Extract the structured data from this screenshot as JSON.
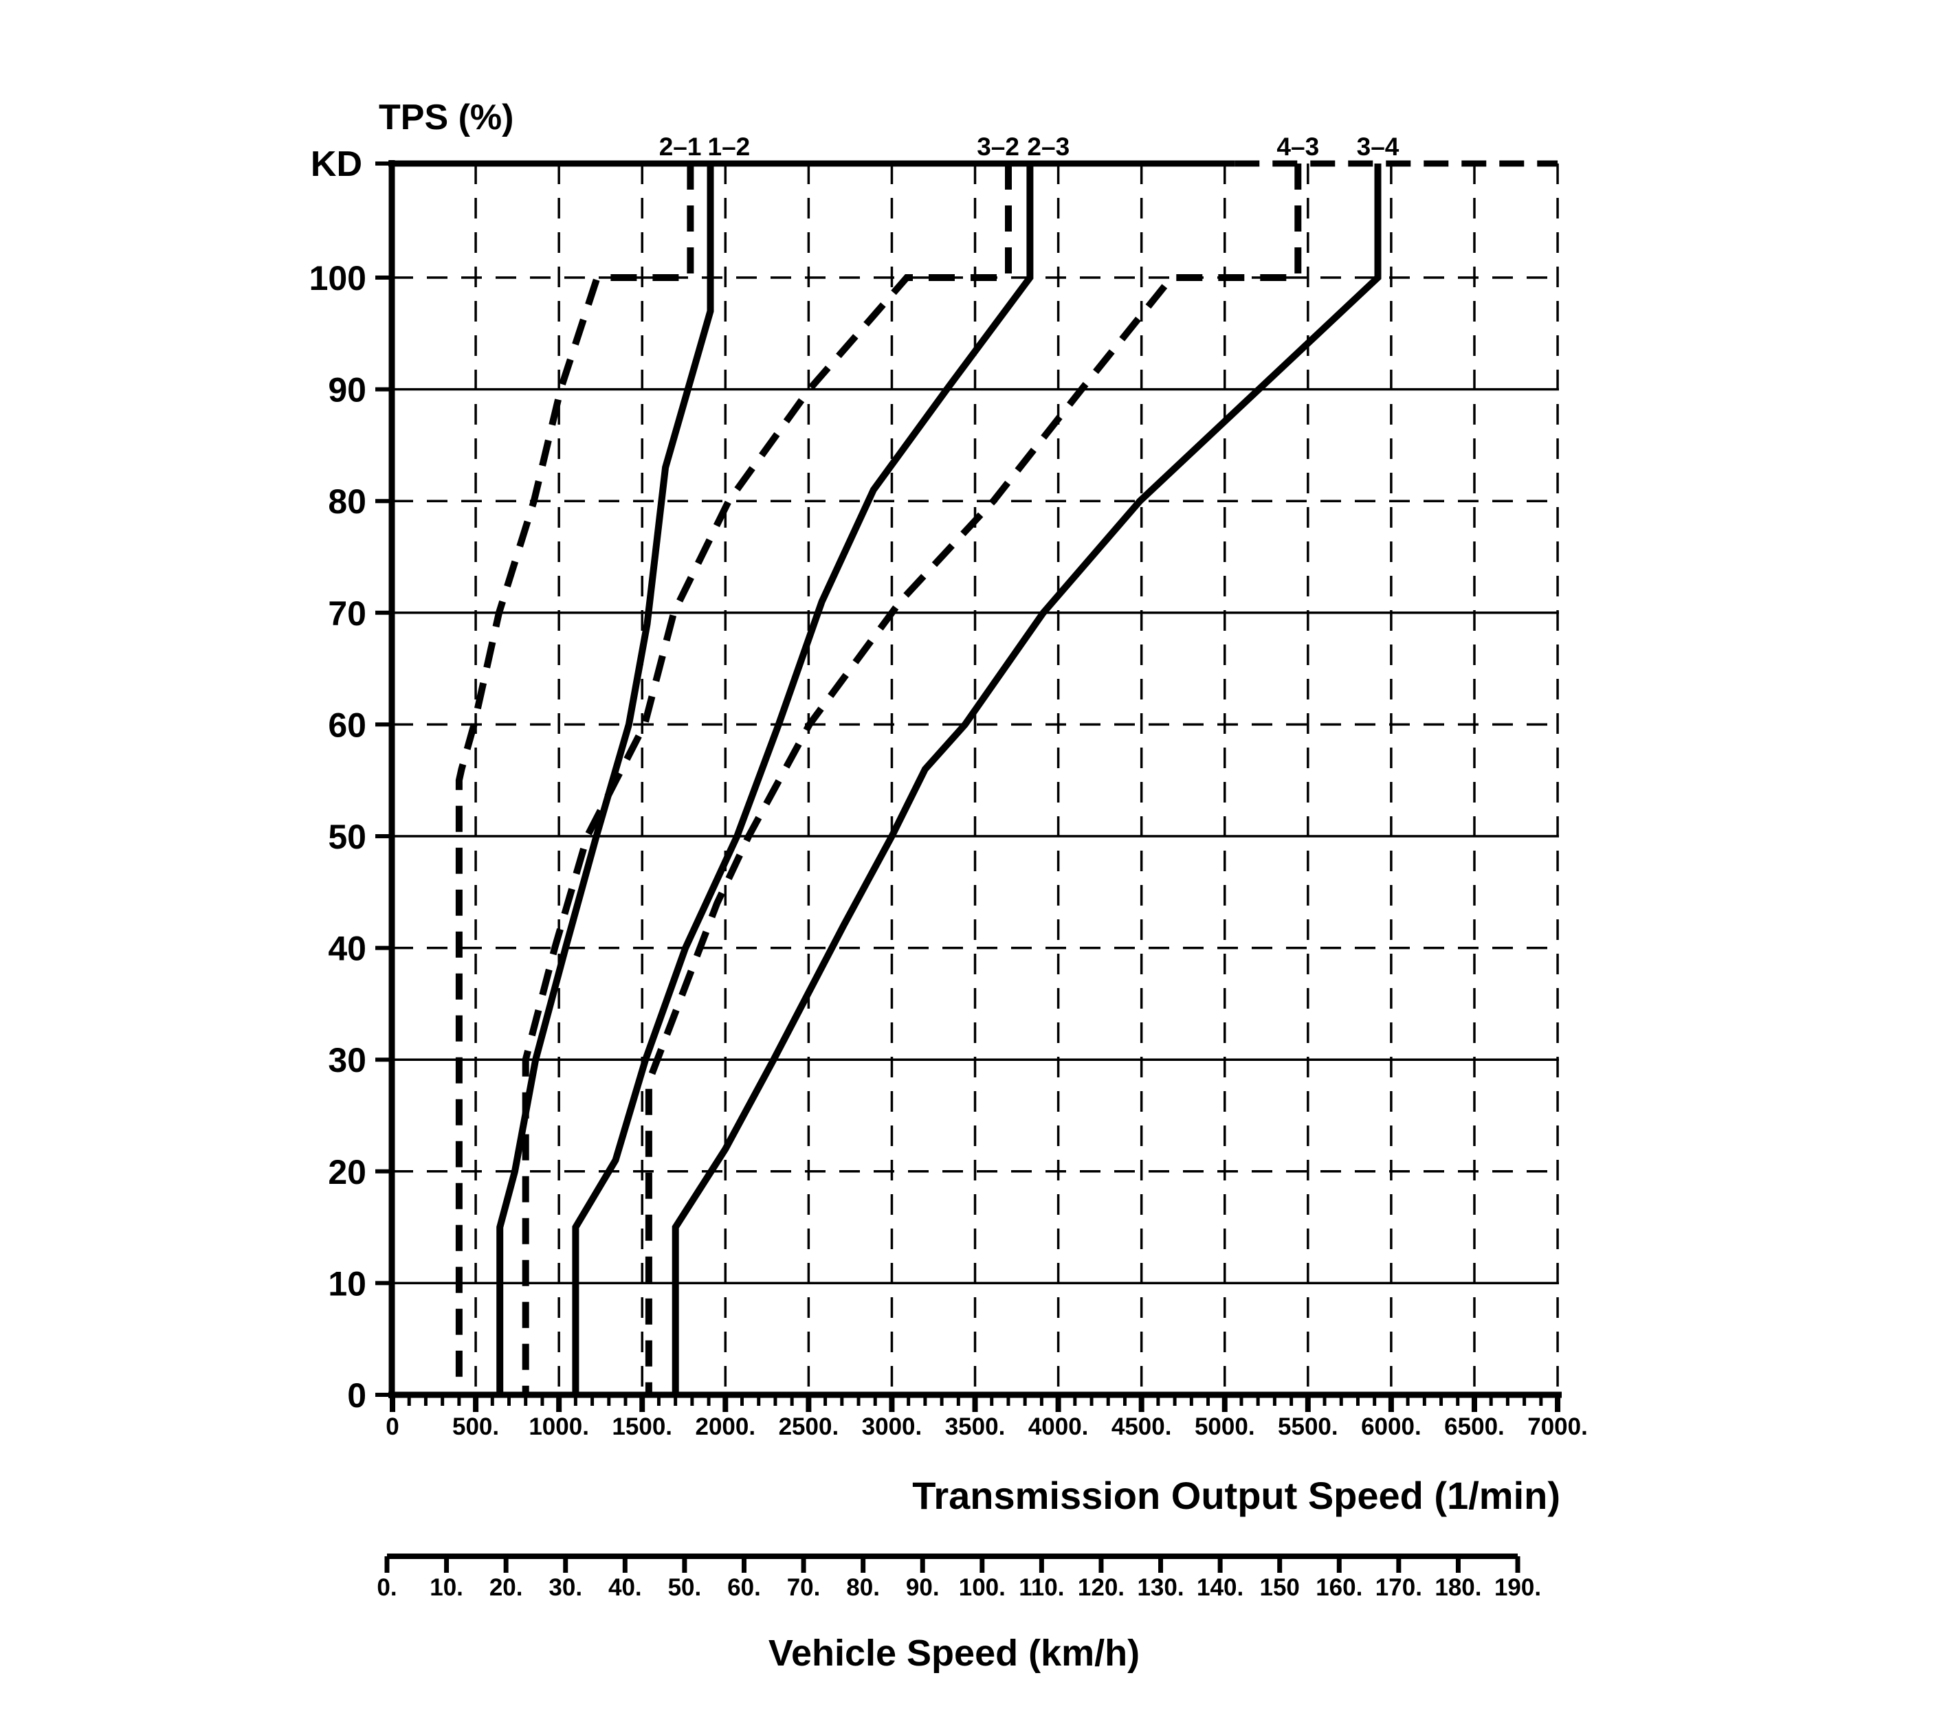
{
  "page": {
    "background": "#ffffff",
    "ink_color": "#000000"
  },
  "chart_data": {
    "type": "line",
    "title_y": "TPS (%)",
    "kd_label": "KD",
    "x_axis": {
      "label": "Transmission Output Speed (1/min)",
      "range": [
        0,
        7000
      ],
      "major_tick_step": 500,
      "minor_tick_step": 100,
      "tick_labels": [
        "0",
        "500.",
        "1000.",
        "1500.",
        "2000.",
        "2500.",
        "3000.",
        "3500.",
        "4000.",
        "4500.",
        "5000.",
        "5500.",
        "6000.",
        "6500.",
        "7000."
      ]
    },
    "y_axis": {
      "label": "TPS (%)",
      "range": [
        0,
        100
      ],
      "tick_step": 10,
      "tick_labels_top_to_bottom": [
        "100",
        "90",
        "80",
        "70",
        "60",
        "50",
        "40",
        "30",
        "20",
        "10",
        "0"
      ],
      "kd_row_label": "KD"
    },
    "vehicle_axis": {
      "label": "Vehicle Speed (km/h)",
      "range": [
        0,
        190
      ],
      "tick_step": 10,
      "tick_labels": [
        "0.",
        "10.",
        "20.",
        "30.",
        "40.",
        "50.",
        "60.",
        "70.",
        "80.",
        "90.",
        "100.",
        "110.",
        "120.",
        "130.",
        "140.",
        "150",
        "160.",
        "170.",
        "180.",
        "190."
      ]
    },
    "grid": {
      "h_dashed_at_tps": [
        100,
        80,
        60,
        40,
        20
      ],
      "h_solid_at_tps": [
        90,
        70,
        50,
        30,
        10
      ],
      "v_dashed_every_rpm": 500
    },
    "top_border": {
      "solid_until_rpm": 5060,
      "dashed_to_rpm": 7000
    },
    "series": [
      {
        "id": "2-1",
        "label": "2–1",
        "line": "dashed",
        "label_side": "left",
        "points_tps_rpm": [
          [
            "KD",
            1790
          ],
          [
            100,
            1790
          ],
          [
            100,
            1230
          ],
          [
            90,
            1010
          ],
          [
            80,
            850
          ],
          [
            70,
            640
          ],
          [
            60,
            490
          ],
          [
            56,
            415
          ],
          [
            55,
            400
          ],
          [
            0,
            400
          ]
        ]
      },
      {
        "id": "1-2",
        "label": "1–2",
        "line": "solid",
        "label_side": "right",
        "points_tps_rpm": [
          [
            "KD",
            1910
          ],
          [
            97,
            1910
          ],
          [
            83,
            1640
          ],
          [
            69,
            1530
          ],
          [
            60,
            1420
          ],
          [
            50,
            1225
          ],
          [
            40,
            1040
          ],
          [
            30,
            860
          ],
          [
            20,
            735
          ],
          [
            15,
            645
          ],
          [
            0,
            645
          ]
        ]
      },
      {
        "id": "3-2",
        "label": "3–2",
        "line": "dashed",
        "label_side": "left",
        "points_tps_rpm": [
          [
            "KD",
            3700
          ],
          [
            100,
            3700
          ],
          [
            100,
            3090
          ],
          [
            90,
            2505
          ],
          [
            80,
            2020
          ],
          [
            70,
            1690
          ],
          [
            60,
            1515
          ],
          [
            50,
            1170
          ],
          [
            40,
            975
          ],
          [
            30,
            800
          ],
          [
            29,
            800
          ],
          [
            0,
            800
          ]
        ]
      },
      {
        "id": "2-3",
        "label": "2–3",
        "line": "solid",
        "label_side": "right",
        "points_tps_rpm": [
          [
            "KD",
            3830
          ],
          [
            100,
            3830
          ],
          [
            90,
            3330
          ],
          [
            81,
            2890
          ],
          [
            71,
            2580
          ],
          [
            60,
            2320
          ],
          [
            50,
            2070
          ],
          [
            40,
            1760
          ],
          [
            30,
            1520
          ],
          [
            21,
            1340
          ],
          [
            15,
            1100
          ],
          [
            0,
            1100
          ]
        ]
      },
      {
        "id": "4-3",
        "label": "4–3",
        "line": "dashed",
        "label_side": "center",
        "points_tps_rpm": [
          [
            "KD",
            5440
          ],
          [
            100,
            5440
          ],
          [
            100,
            4680
          ],
          [
            90,
            4140
          ],
          [
            80,
            3610
          ],
          [
            71,
            3050
          ],
          [
            60,
            2505
          ],
          [
            50,
            2140
          ],
          [
            44,
            1950
          ],
          [
            28,
            1540
          ],
          [
            0,
            1540
          ]
        ]
      },
      {
        "id": "3-4",
        "label": "3–4",
        "line": "solid",
        "label_side": "center",
        "points_tps_rpm": [
          [
            "KD",
            5920
          ],
          [
            100,
            5920
          ],
          [
            80,
            4490
          ],
          [
            70,
            3910
          ],
          [
            60,
            3440
          ],
          [
            56,
            3200
          ],
          [
            50,
            3000
          ],
          [
            42,
            2710
          ],
          [
            30,
            2290
          ],
          [
            22,
            2000
          ],
          [
            15,
            1700
          ],
          [
            0,
            1700
          ]
        ]
      }
    ]
  }
}
